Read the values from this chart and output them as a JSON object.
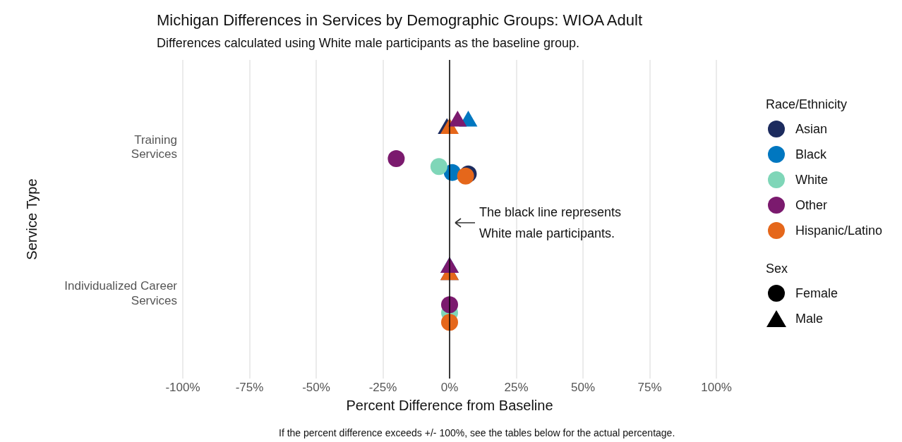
{
  "chart_data": {
    "type": "scatter",
    "title": "Michigan Differences in Services by Demographic Groups: WIOA Adult",
    "subtitle": "Differences calculated using White male participants as the baseline group.",
    "xlabel": "Percent Difference from Baseline",
    "ylabel": "Service Type",
    "categories": [
      "Training Services",
      "Individualized Career Services"
    ],
    "xlim": [
      -100,
      100
    ],
    "xticks": [
      {
        "value": -100,
        "label": "-100%"
      },
      {
        "value": -75,
        "label": "-75%"
      },
      {
        "value": -50,
        "label": "-50%"
      },
      {
        "value": -25,
        "label": "-25%"
      },
      {
        "value": 0,
        "label": "0%"
      },
      {
        "value": 25,
        "label": "25%"
      },
      {
        "value": 50,
        "label": "50%"
      },
      {
        "value": 75,
        "label": "75%"
      },
      {
        "value": 100,
        "label": "100%"
      }
    ],
    "grid": "x",
    "legend": "right",
    "legend_title": "Race/Ethnicity",
    "orientation": "horizontal",
    "ref_lines": [
      {
        "axis": "x",
        "value": 0,
        "color": "#000000"
      }
    ],
    "annotations": [
      "The black line represents White male participants.",
      "If the percent difference exceeds +/- 100%, see the tables below for the actual percentage.",
      "Sex",
      "Female",
      "Male"
    ],
    "series": [
      {
        "name": "Asian",
        "color": "#1c2b5e",
        "marker": "circle",
        "values": [
          7,
          null
        ]
      },
      {
        "name": "Black",
        "color": "#0077c0",
        "marker": "circle",
        "values": [
          1,
          null
        ]
      },
      {
        "name": "White",
        "color": "#7fd6b8",
        "marker": "circle",
        "values": [
          -4,
          0
        ]
      },
      {
        "name": "Other",
        "color": "#7b1a6e",
        "marker": "circle",
        "values": [
          -20,
          0
        ]
      },
      {
        "name": "Hispanic/Latino",
        "color": "#e5671b",
        "marker": "circle",
        "values": [
          6,
          0
        ]
      },
      {
        "color": "#1c2b5e",
        "marker": "triangle",
        "values": [
          -1,
          0
        ]
      },
      {
        "color": "#0077c0",
        "marker": "triangle",
        "values": [
          7,
          0
        ]
      },
      {
        "color": "#e5671b",
        "marker": "triangle",
        "values": [
          0,
          0
        ]
      },
      {
        "color": "#7b1a6e",
        "marker": "triangle",
        "values": [
          3,
          0
        ]
      }
    ]
  }
}
